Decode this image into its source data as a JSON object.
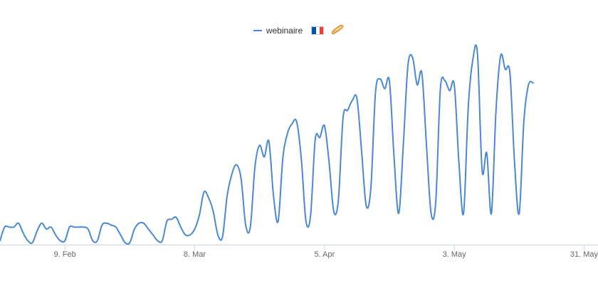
{
  "legend": {
    "label": "webinaire",
    "flag": "🇫🇷",
    "emoji": "🥖",
    "line_color": "#4a89d2",
    "flag_colors": [
      "#0055a4",
      "#ffffff",
      "#ef4135"
    ]
  },
  "chart_data": {
    "type": "line",
    "title": "",
    "xlabel": "",
    "ylabel": "",
    "x_range": [
      "2020-01-26",
      "2020-06-03"
    ],
    "ylim": [
      0,
      100
    ],
    "grid": false,
    "legend_position": "top-center",
    "x_ticks": [
      {
        "date": "2020-02-09",
        "label": "9. Feb"
      },
      {
        "date": "2020-03-08",
        "label": "8. Mar"
      },
      {
        "date": "2020-04-05",
        "label": "5. Apr"
      },
      {
        "date": "2020-05-03",
        "label": "3. May"
      },
      {
        "date": "2020-05-31",
        "label": "31. May"
      }
    ],
    "series": [
      {
        "name": "webinaire",
        "color": "#4a89d2",
        "points": [
          [
            "2020-01-26",
            2
          ],
          [
            "2020-01-27",
            9
          ],
          [
            "2020-01-28",
            9
          ],
          [
            "2020-01-29",
            9
          ],
          [
            "2020-01-30",
            11
          ],
          [
            "2020-01-31",
            6
          ],
          [
            "2020-02-01",
            2
          ],
          [
            "2020-02-02",
            1
          ],
          [
            "2020-02-03",
            7
          ],
          [
            "2020-02-04",
            11
          ],
          [
            "2020-02-05",
            8
          ],
          [
            "2020-02-06",
            9
          ],
          [
            "2020-02-07",
            5
          ],
          [
            "2020-02-08",
            2
          ],
          [
            "2020-02-09",
            2
          ],
          [
            "2020-02-10",
            9
          ],
          [
            "2020-02-11",
            9
          ],
          [
            "2020-02-12",
            9
          ],
          [
            "2020-02-13",
            9
          ],
          [
            "2020-02-14",
            8
          ],
          [
            "2020-02-15",
            2
          ],
          [
            "2020-02-16",
            2
          ],
          [
            "2020-02-17",
            10
          ],
          [
            "2020-02-18",
            11
          ],
          [
            "2020-02-19",
            10
          ],
          [
            "2020-02-20",
            9
          ],
          [
            "2020-02-21",
            5
          ],
          [
            "2020-02-22",
            1
          ],
          [
            "2020-02-23",
            1
          ],
          [
            "2020-02-24",
            8
          ],
          [
            "2020-02-25",
            11
          ],
          [
            "2020-02-26",
            11
          ],
          [
            "2020-02-27",
            8
          ],
          [
            "2020-02-28",
            5
          ],
          [
            "2020-02-29",
            2
          ],
          [
            "2020-03-01",
            2
          ],
          [
            "2020-03-02",
            12
          ],
          [
            "2020-03-03",
            13
          ],
          [
            "2020-03-04",
            14
          ],
          [
            "2020-03-05",
            9
          ],
          [
            "2020-03-06",
            5
          ],
          [
            "2020-03-07",
            5
          ],
          [
            "2020-03-08",
            8
          ],
          [
            "2020-03-09",
            15
          ],
          [
            "2020-03-10",
            27
          ],
          [
            "2020-03-11",
            24
          ],
          [
            "2020-03-12",
            17
          ],
          [
            "2020-03-13",
            5
          ],
          [
            "2020-03-14",
            4
          ],
          [
            "2020-03-15",
            25
          ],
          [
            "2020-03-16",
            36
          ],
          [
            "2020-03-17",
            41
          ],
          [
            "2020-03-18",
            34
          ],
          [
            "2020-03-19",
            10
          ],
          [
            "2020-03-20",
            9
          ],
          [
            "2020-03-21",
            40
          ],
          [
            "2020-03-22",
            51
          ],
          [
            "2020-03-23",
            45
          ],
          [
            "2020-03-24",
            53
          ],
          [
            "2020-03-25",
            25
          ],
          [
            "2020-03-26",
            12
          ],
          [
            "2020-03-27",
            44
          ],
          [
            "2020-03-28",
            57
          ],
          [
            "2020-03-29",
            62
          ],
          [
            "2020-03-30",
            63
          ],
          [
            "2020-03-31",
            44
          ],
          [
            "2020-04-01",
            12
          ],
          [
            "2020-04-02",
            15
          ],
          [
            "2020-04-03",
            54
          ],
          [
            "2020-04-04",
            55
          ],
          [
            "2020-04-05",
            61
          ],
          [
            "2020-04-06",
            42
          ],
          [
            "2020-04-07",
            17
          ],
          [
            "2020-04-08",
            23
          ],
          [
            "2020-04-09",
            65
          ],
          [
            "2020-04-10",
            69
          ],
          [
            "2020-04-11",
            74
          ],
          [
            "2020-04-12",
            75
          ],
          [
            "2020-04-13",
            48
          ],
          [
            "2020-04-14",
            20
          ],
          [
            "2020-04-15",
            29
          ],
          [
            "2020-04-16",
            78
          ],
          [
            "2020-04-17",
            85
          ],
          [
            "2020-04-18",
            80
          ],
          [
            "2020-04-19",
            84
          ],
          [
            "2020-04-20",
            45
          ],
          [
            "2020-04-21",
            16
          ],
          [
            "2020-04-22",
            51
          ],
          [
            "2020-04-23",
            92
          ],
          [
            "2020-04-24",
            96
          ],
          [
            "2020-04-25",
            82
          ],
          [
            "2020-04-26",
            88
          ],
          [
            "2020-04-27",
            51
          ],
          [
            "2020-04-28",
            16
          ],
          [
            "2020-04-29",
            22
          ],
          [
            "2020-04-30",
            80
          ],
          [
            "2020-05-01",
            84
          ],
          [
            "2020-05-02",
            79
          ],
          [
            "2020-05-03",
            82
          ],
          [
            "2020-05-04",
            42
          ],
          [
            "2020-05-05",
            16
          ],
          [
            "2020-05-06",
            70
          ],
          [
            "2020-05-07",
            95
          ],
          [
            "2020-05-08",
            98
          ],
          [
            "2020-05-09",
            38
          ],
          [
            "2020-05-10",
            47
          ],
          [
            "2020-05-11",
            16
          ],
          [
            "2020-05-12",
            69
          ],
          [
            "2020-05-13",
            97
          ],
          [
            "2020-05-14",
            90
          ],
          [
            "2020-05-15",
            88
          ],
          [
            "2020-05-16",
            42
          ],
          [
            "2020-05-17",
            16
          ],
          [
            "2020-05-18",
            63
          ],
          [
            "2020-05-19",
            82
          ],
          [
            "2020-05-20",
            83
          ]
        ]
      }
    ]
  }
}
